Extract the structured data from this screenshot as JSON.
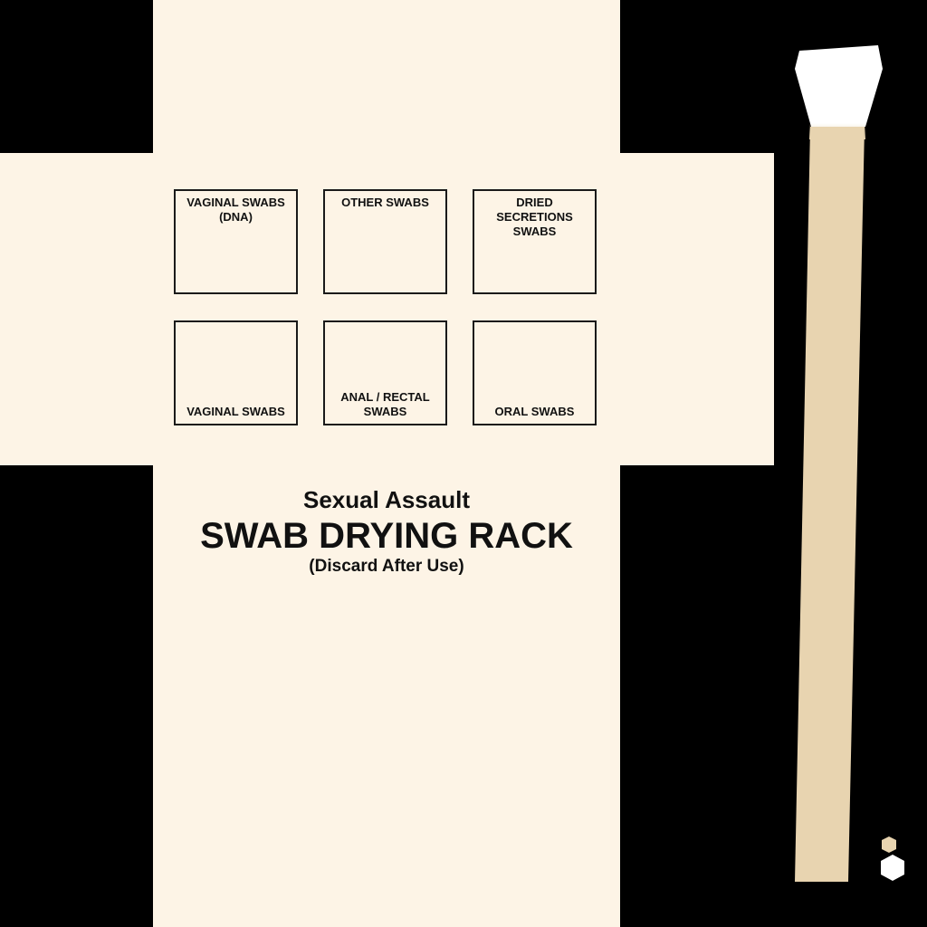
{
  "slots": [
    {
      "label": "VAGINAL SWABS\n(DNA)"
    },
    {
      "label": "OTHER SWABS"
    },
    {
      "label": "DRIED SECRETIONS\nSWABS"
    },
    {
      "label": "VAGINAL SWABS"
    },
    {
      "label": "ANAL / RECTAL\nSWABS"
    },
    {
      "label": "ORAL SWABS"
    }
  ],
  "title": {
    "subtitle_top": "Sexual Assault",
    "main": "SWAB DRYING RACK",
    "subtitle_bottom": "(Discard After Use)"
  },
  "colors": {
    "panel": "#fdf4e6",
    "background": "#000000",
    "stick": "#e8d4b0",
    "cotton_tip": "#ffffff",
    "border": "#1a1a1a"
  },
  "icons": {
    "swab": "cotton-swab-icon",
    "hex_small": "hexagon-icon",
    "hex_large": "hexagon-icon"
  }
}
